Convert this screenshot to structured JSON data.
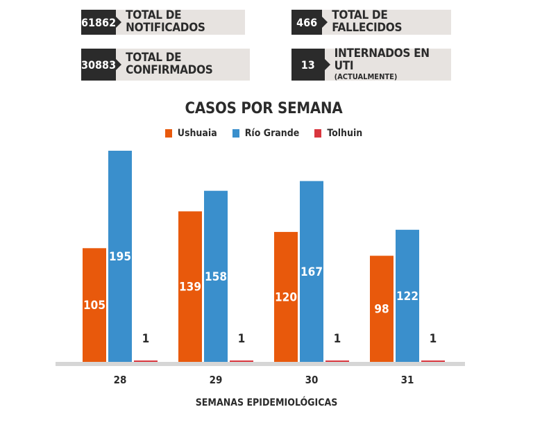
{
  "stats": [
    {
      "value": "61862",
      "label": "TOTAL DE NOTIFICADOS",
      "sub": ""
    },
    {
      "value": "466",
      "label": "TOTAL DE FALLECIDOS",
      "sub": ""
    },
    {
      "value": "30883",
      "label": "TOTAL DE CONFIRMADOS",
      "sub": ""
    },
    {
      "value": "13",
      "label": "INTERNADOS EN UTI",
      "sub": "(ACTUALMENTE)"
    }
  ],
  "chart_data": {
    "type": "bar",
    "title": "CASOS POR SEMANA",
    "xlabel": "SEMANAS EPIDEMIOLÓGICAS",
    "ylabel": "",
    "categories": [
      "28",
      "29",
      "30",
      "31"
    ],
    "series": [
      {
        "name": "Ushuaia",
        "color": "#e8590c",
        "values": [
          105,
          139,
          120,
          98
        ]
      },
      {
        "name": "Río Grande",
        "color": "#3a8fcc",
        "values": [
          195,
          158,
          167,
          122
        ]
      },
      {
        "name": "Tolhuin",
        "color": "#d9363e",
        "values": [
          1,
          1,
          1,
          1
        ]
      }
    ],
    "ylim": [
      0,
      200
    ],
    "legend_position": "top-center",
    "grid": false,
    "data_labels": true
  }
}
